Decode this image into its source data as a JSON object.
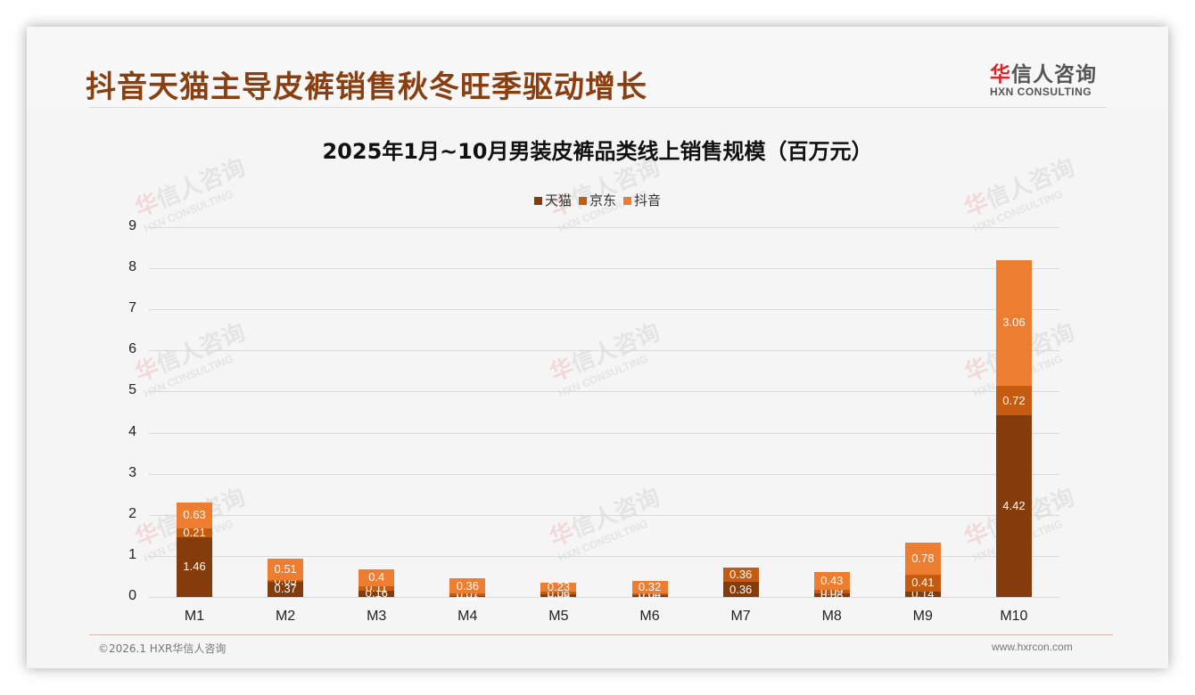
{
  "header": {
    "title": "抖音天猫主导皮裤销售秋冬旺季驱动增长",
    "logo_hua": "华",
    "logo_rest": "信人咨询",
    "logo_en": "HXN CONSULTING"
  },
  "watermark": {
    "hua": "华",
    "rest": "信人咨询",
    "en": "HXN CONSULTING"
  },
  "colors": {
    "title": "#8a3f10",
    "tmall": "#843c0c",
    "jd": "#c55a11",
    "douyin": "#ed7d31"
  },
  "footer": {
    "copyright": "©2026.1 HXR华信人咨询",
    "website": "www.hxrcon.com"
  },
  "chart_data": {
    "type": "bar",
    "stacked": true,
    "title": "2025年1月~10月男装皮裤品类线上销售规模（百万元）",
    "xlabel": "",
    "ylabel": "",
    "ylim": [
      0,
      9
    ],
    "yticks": [
      0,
      1,
      2,
      3,
      4,
      5,
      6,
      7,
      8,
      9
    ],
    "grid": true,
    "legend_position": "top",
    "categories": [
      "M1",
      "M2",
      "M3",
      "M4",
      "M5",
      "M6",
      "M7",
      "M8",
      "M9",
      "M10"
    ],
    "series": [
      {
        "name": "天猫",
        "color": "#843c0c",
        "values": [
          1.46,
          0.37,
          0.16,
          0.02,
          0.06,
          0.04,
          0.36,
          0.08,
          0.14,
          4.42
        ]
      },
      {
        "name": "京东",
        "color": "#c55a11",
        "values": [
          0.21,
          0.05,
          0.11,
          0.07,
          0.06,
          0.04,
          0.36,
          0.09,
          0.41,
          0.72
        ]
      },
      {
        "name": "抖音",
        "color": "#ed7d31",
        "values": [
          0.63,
          0.51,
          0.4,
          0.36,
          0.23,
          0.32,
          0.0,
          0.43,
          0.78,
          3.06
        ]
      }
    ]
  }
}
